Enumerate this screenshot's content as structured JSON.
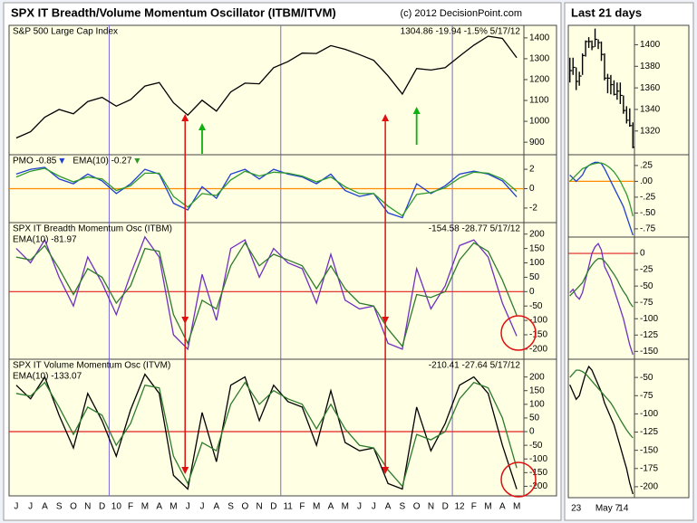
{
  "header": {
    "title": "SPX IT Breadth/Volume Momentum Oscillator (ITBM/ITVM)",
    "credit": "(c) 2012 DecisionPoint.com",
    "right_title": "Last 21 days"
  },
  "chart_data": [
    {
      "type": "line",
      "title": "S&P 500 Large Cap Index",
      "annotation": "1304.86 -19.94 -1.5% 5/17/12",
      "ylim": [
        840,
        1460
      ],
      "yticks": [
        900,
        1000,
        1100,
        1200,
        1300,
        1400
      ],
      "series": [
        {
          "color": "#000000",
          "values": [
            920,
            950,
            1020,
            1057,
            1036,
            1095,
            1115,
            1073,
            1104,
            1169,
            1186,
            1089,
            1030,
            1101,
            1049,
            1141,
            1183,
            1180,
            1257,
            1286,
            1327,
            1325,
            1363,
            1345,
            1320,
            1292,
            1218,
            1131,
            1253,
            1246,
            1257,
            1312,
            1365,
            1408,
            1397,
            1305
          ]
        }
      ]
    },
    {
      "type": "line",
      "ylim": [
        -3.5,
        3.5
      ],
      "yticks": [
        2,
        0,
        -2
      ],
      "zero_line": {
        "value": 0,
        "color": "#ff8c00"
      },
      "series": [
        {
          "name": "PMO -0.85",
          "color": "#1f3fd0",
          "values": [
            1.5,
            2,
            2.2,
            1,
            0.5,
            1.5,
            0.8,
            -0.5,
            0.5,
            2,
            1.5,
            -1.5,
            -2.2,
            0.2,
            -1,
            1.5,
            2,
            1,
            2,
            1.5,
            1.2,
            0.5,
            1.5,
            -0.2,
            -0.8,
            -0.5,
            -2.5,
            -3,
            0.5,
            -0.5,
            0.3,
            1.5,
            1.8,
            1.5,
            0.8,
            -0.85
          ]
        },
        {
          "name": "EMA(10) -0.27",
          "color": "#2e9a2e",
          "values": [
            1.2,
            1.8,
            2.1,
            1.3,
            0.7,
            1.2,
            1,
            -0.2,
            0.3,
            1.6,
            1.6,
            -0.8,
            -1.9,
            -0.5,
            -0.7,
            0.9,
            1.8,
            1.3,
            1.7,
            1.6,
            1.3,
            0.7,
            1.2,
            0.2,
            -0.5,
            -0.5,
            -1.8,
            -2.8,
            -0.6,
            -0.4,
            0.1,
            1.1,
            1.7,
            1.6,
            1,
            -0.27
          ]
        }
      ]
    },
    {
      "type": "line",
      "title": "SPX IT Breadth Momentum Osc (ITBM)",
      "annotation": "-154.58 -28.77 5/17/12",
      "ylim": [
        -235,
        240
      ],
      "yticks": [
        200,
        150,
        100,
        50,
        0,
        -50,
        -100,
        -150,
        -200
      ],
      "zero_line": {
        "value": 0,
        "color": "#e02020"
      },
      "series": [
        {
          "color": "#7030c0",
          "values": [
            150,
            100,
            180,
            50,
            -50,
            120,
            30,
            -80,
            60,
            190,
            120,
            -150,
            -200,
            60,
            -100,
            150,
            180,
            50,
            150,
            100,
            80,
            -40,
            130,
            -30,
            -60,
            -50,
            -180,
            -200,
            80,
            -60,
            20,
            160,
            180,
            120,
            -40,
            -154.58
          ]
        },
        {
          "name": "EMA(10) -81.97",
          "color": "#2e7a2e",
          "values": [
            120,
            110,
            160,
            80,
            -10,
            80,
            50,
            -40,
            20,
            150,
            140,
            -80,
            -180,
            -30,
            -60,
            90,
            170,
            90,
            130,
            110,
            90,
            10,
            90,
            10,
            -40,
            -50,
            -130,
            -190,
            -10,
            -20,
            0,
            110,
            170,
            140,
            40,
            -81.97
          ]
        }
      ]
    },
    {
      "type": "line",
      "title": "SPX IT Volume Momentum Osc (ITVM)",
      "annotation": "-210.41 -27.64 5/17/12",
      "ylim": [
        -235,
        265
      ],
      "yticks": [
        200,
        150,
        100,
        50,
        0,
        -50,
        -100,
        -150,
        -200
      ],
      "zero_line": {
        "value": 0,
        "color": "#e02020"
      },
      "categories": [
        "J",
        "J",
        "A",
        "S",
        "O",
        "N",
        "D",
        "10",
        "F",
        "M",
        "A",
        "M",
        "J",
        "J",
        "A",
        "S",
        "O",
        "N",
        "D",
        "11",
        "F",
        "M",
        "A",
        "M",
        "J",
        "J",
        "A",
        "S",
        "O",
        "N",
        "D",
        "12",
        "F",
        "M",
        "A",
        "M"
      ],
      "series": [
        {
          "color": "#000000",
          "values": [
            170,
            120,
            200,
            60,
            -60,
            140,
            40,
            -90,
            80,
            210,
            140,
            -160,
            -210,
            70,
            -110,
            170,
            200,
            40,
            170,
            110,
            90,
            -50,
            150,
            -40,
            -70,
            -60,
            -190,
            -210,
            90,
            -70,
            30,
            170,
            200,
            140,
            -50,
            -210.41
          ]
        },
        {
          "name": "EMA(10) -133.07",
          "color": "#2e7a2e",
          "values": [
            140,
            130,
            180,
            90,
            -10,
            90,
            60,
            -50,
            30,
            170,
            160,
            -90,
            -190,
            -40,
            -70,
            100,
            180,
            100,
            150,
            120,
            100,
            10,
            100,
            10,
            -50,
            -60,
            -140,
            -200,
            -10,
            -30,
            0,
            120,
            180,
            160,
            50,
            -133.07
          ]
        }
      ]
    },
    {
      "type": "ohlc",
      "ylim": [
        1298,
        1418
      ],
      "yticks": [
        1320,
        1340,
        1360,
        1380,
        1400
      ],
      "color": "#000000",
      "high": [
        1388,
        1388,
        1379,
        1375,
        1392,
        1404,
        1407,
        1404,
        1415,
        1405,
        1403,
        1392,
        1373,
        1372,
        1367,
        1365,
        1365,
        1353,
        1343,
        1341,
        1328
      ],
      "low": [
        1365,
        1372,
        1358,
        1362,
        1372,
        1389,
        1397,
        1395,
        1398,
        1396,
        1385,
        1367,
        1355,
        1354,
        1353,
        1349,
        1345,
        1336,
        1327,
        1324,
        1304
      ],
      "close": [
        1376,
        1379,
        1366,
        1371,
        1390,
        1403,
        1403,
        1398,
        1405,
        1402,
        1391,
        1369,
        1369,
        1363,
        1354,
        1357,
        1353,
        1339,
        1330,
        1325,
        1305
      ]
    },
    {
      "type": "line",
      "ylim": [
        -0.88,
        0.42
      ],
      "yticks": [
        {
          "value": 0.25,
          "label": ".25"
        },
        {
          "value": 0,
          "label": ".00"
        },
        {
          "value": -0.25,
          "label": "-.25"
        },
        {
          "value": -0.5,
          "label": "-.50"
        },
        {
          "value": -0.75,
          "label": "-.75"
        }
      ],
      "zero_line": {
        "value": 0,
        "color": "#ff8c00"
      },
      "series": [
        {
          "color": "#1f3fd0",
          "values": [
            0.1,
            0.05,
            0,
            0.05,
            0.1,
            0.2,
            0.25,
            0.28,
            0.3,
            0.3,
            0.28,
            0.2,
            0.1,
            0,
            -0.1,
            -0.2,
            -0.3,
            -0.4,
            -0.55,
            -0.7,
            -0.85
          ]
        },
        {
          "color": "#2e9a2e",
          "values": [
            0,
            0.05,
            0.1,
            0.15,
            0.2,
            0.22,
            0.25,
            0.27,
            0.28,
            0.29,
            0.29,
            0.27,
            0.24,
            0.2,
            0.15,
            0.08,
            0,
            -0.1,
            -0.2,
            -0.35,
            -0.55
          ]
        }
      ]
    },
    {
      "type": "line",
      "ylim": [
        -162,
        25
      ],
      "yticks": [
        0,
        -25,
        -50,
        -75,
        -100,
        -125,
        -150
      ],
      "zero_line": {
        "value": 0,
        "color": "#e02020"
      },
      "series": [
        {
          "color": "#7030c0",
          "values": [
            -60,
            -55,
            -65,
            -70,
            -60,
            -40,
            -20,
            0,
            10,
            15,
            5,
            -20,
            -30,
            -40,
            -55,
            -70,
            -85,
            -100,
            -120,
            -140,
            -155
          ]
        },
        {
          "color": "#2e7a2e",
          "values": [
            -65,
            -60,
            -55,
            -50,
            -45,
            -35,
            -25,
            -18,
            -12,
            -8,
            -8,
            -12,
            -18,
            -25,
            -32,
            -40,
            -50,
            -58,
            -65,
            -75,
            -82
          ]
        }
      ]
    },
    {
      "type": "line",
      "ylim": [
        -215,
        -25
      ],
      "yticks": [
        -50,
        -75,
        -100,
        -125,
        -150,
        -175,
        -200
      ],
      "categories": [
        null,
        null,
        "23",
        null,
        null,
        null,
        null,
        null,
        null,
        null,
        null,
        null,
        "May 7",
        null,
        null,
        null,
        null,
        "14",
        null,
        null,
        null
      ],
      "series": [
        {
          "color": "#000000",
          "values": [
            -60,
            -70,
            -80,
            -75,
            -60,
            -45,
            -35,
            -40,
            -50,
            -60,
            -70,
            -85,
            -95,
            -105,
            -115,
            -130,
            -145,
            -160,
            -175,
            -195,
            -210
          ]
        },
        {
          "color": "#2e7a2e",
          "values": [
            -50,
            -45,
            -40,
            -40,
            -42,
            -45,
            -50,
            -55,
            -60,
            -65,
            -70,
            -75,
            -80,
            -85,
            -92,
            -100,
            -108,
            -115,
            -122,
            -128,
            -133
          ]
        }
      ]
    }
  ]
}
